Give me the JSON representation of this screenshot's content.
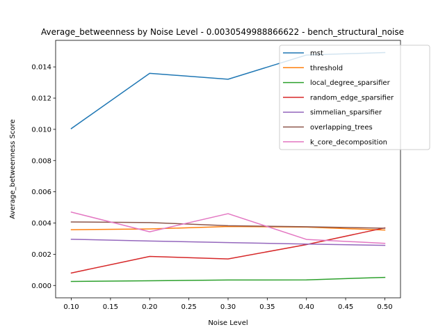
{
  "chart_data": {
    "type": "line",
    "title": "Average_betweenness by Noise Level - 0.0030549988866622 - bench_structural_noise",
    "xlabel": "Noise Level",
    "ylabel": "Average_betweenness Score",
    "xlim": [
      0.08,
      0.52
    ],
    "ylim": [
      -0.00079,
      0.0157
    ],
    "xticks": [
      "0.10",
      "0.15",
      "0.20",
      "0.25",
      "0.30",
      "0.35",
      "0.40",
      "0.45",
      "0.50"
    ],
    "yticks": [
      "0.000",
      "0.002",
      "0.004",
      "0.006",
      "0.008",
      "0.010",
      "0.012",
      "0.014"
    ],
    "grid": false,
    "legend_position": "top-right",
    "x": [
      0.1,
      0.2,
      0.3,
      0.4,
      0.5
    ],
    "series": [
      {
        "name": "mst",
        "color": "#1f77b4",
        "values": [
          0.01005,
          0.01359,
          0.01321,
          0.01476,
          0.01492
        ]
      },
      {
        "name": "threshold",
        "color": "#ff7f0e",
        "values": [
          0.00357,
          0.00362,
          0.00378,
          0.00374,
          0.00355
        ]
      },
      {
        "name": "local_degree_sparsifier",
        "color": "#2ca02c",
        "values": [
          0.00026,
          0.0003,
          0.00035,
          0.00036,
          0.00052
        ]
      },
      {
        "name": "random_edge_sparsifier",
        "color": "#d62728",
        "values": [
          0.0008,
          0.00186,
          0.0017,
          0.00262,
          0.00369
        ]
      },
      {
        "name": "simmelian_sparsifier",
        "color": "#9467bd",
        "values": [
          0.00296,
          0.00285,
          0.00275,
          0.00265,
          0.00257
        ]
      },
      {
        "name": "overlapping_trees",
        "color": "#8c564b",
        "values": [
          0.00407,
          0.00403,
          0.00383,
          0.00376,
          0.00367
        ]
      },
      {
        "name": "k_core_decomposition",
        "color": "#e377c2",
        "values": [
          0.0047,
          0.00344,
          0.0046,
          0.00295,
          0.0027
        ]
      }
    ]
  }
}
